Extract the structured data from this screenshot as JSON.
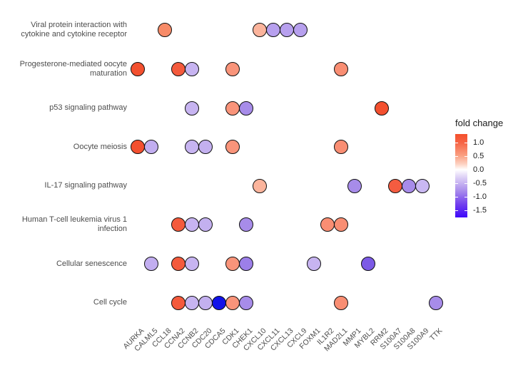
{
  "figure": {
    "background": "#ffffff"
  },
  "chart_data": {
    "type": "scatter",
    "title": "",
    "xlabel": "",
    "ylabel": "",
    "grid": false,
    "x_categories": [
      "AURKA",
      "CALML5",
      "CCL18",
      "CCNA2",
      "CCNB2",
      "CDC20",
      "CDCA5",
      "CDK1",
      "CHEK1",
      "CXCL10",
      "CXCL11",
      "CXCL13",
      "CXCL9",
      "FOXM1",
      "IL1R2",
      "MAD2L1",
      "MMP1",
      "MYBL2",
      "RRM2",
      "S100A7",
      "S100A8",
      "S100A9",
      "TTK"
    ],
    "y_categories": [
      "Viral protein interaction with cytokine and cytokine receptor",
      "Progesterone-mediated oocyte maturation",
      "p53 signaling pathway",
      "Oocyte meiosis",
      "IL-17 signaling pathway",
      "Human T-cell leukemia virus 1 infection",
      "Cellular senescence",
      "Cell cycle"
    ],
    "legend": {
      "title": "fold change",
      "position": "right",
      "tick_labels": [
        "1.0",
        "0.5",
        "0.0",
        "-0.5",
        "-1.0",
        "-1.5"
      ],
      "tick_values": [
        1.0,
        0.5,
        0.0,
        -0.5,
        -1.0,
        -1.5
      ],
      "bar_top_value": 1.3,
      "bar_bottom_value": -1.75,
      "gradient_stops": [
        {
          "pos": 0.0,
          "color": "#f4502c"
        },
        {
          "pos": 0.1,
          "color": "#f66344"
        },
        {
          "pos": 0.26,
          "color": "#faa183"
        },
        {
          "pos": 0.36,
          "color": "#fdd2c2"
        },
        {
          "pos": 0.426,
          "color": "#ffffff"
        },
        {
          "pos": 0.52,
          "color": "#ddd0f6"
        },
        {
          "pos": 0.68,
          "color": "#a98dec"
        },
        {
          "pos": 0.85,
          "color": "#6f3cee"
        },
        {
          "pos": 1.0,
          "color": "#3d07fa"
        }
      ]
    },
    "points": [
      {
        "pathway": "Viral protein interaction with cytokine and cytokine receptor",
        "gene": "CCL18",
        "fold_change": 0.8,
        "color": "#f78b68"
      },
      {
        "pathway": "Viral protein interaction with cytokine and cytokine receptor",
        "gene": "CXCL10",
        "fold_change": 0.45,
        "color": "#fbb49c"
      },
      {
        "pathway": "Viral protein interaction with cytokine and cytokine receptor",
        "gene": "CXCL11",
        "fold_change": -0.7,
        "color": "#b7a0ee"
      },
      {
        "pathway": "Viral protein interaction with cytokine and cytokine receptor",
        "gene": "CXCL13",
        "fold_change": -0.7,
        "color": "#b7a0ee"
      },
      {
        "pathway": "Viral protein interaction with cytokine and cytokine receptor",
        "gene": "CXCL9",
        "fold_change": -0.7,
        "color": "#b7a0ee"
      },
      {
        "pathway": "Progesterone-mediated oocyte maturation",
        "gene": "AURKA",
        "fold_change": 1.2,
        "color": "#f3502f"
      },
      {
        "pathway": "Progesterone-mediated oocyte maturation",
        "gene": "CCNA2",
        "fold_change": 1.1,
        "color": "#f45a3c"
      },
      {
        "pathway": "Progesterone-mediated oocyte maturation",
        "gene": "CCNB2",
        "fold_change": -0.5,
        "color": "#c7b4f1"
      },
      {
        "pathway": "Progesterone-mediated oocyte maturation",
        "gene": "CDK1",
        "fold_change": 0.75,
        "color": "#f9947a"
      },
      {
        "pathway": "Progesterone-mediated oocyte maturation",
        "gene": "MAD2L1",
        "fold_change": 0.8,
        "color": "#f98e73"
      },
      {
        "pathway": "p53 signaling pathway",
        "gene": "CCNB2",
        "fold_change": -0.5,
        "color": "#c7b4f1"
      },
      {
        "pathway": "p53 signaling pathway",
        "gene": "CDK1",
        "fold_change": 0.75,
        "color": "#f9947a"
      },
      {
        "pathway": "p53 signaling pathway",
        "gene": "CHEK1",
        "fold_change": -0.8,
        "color": "#a78ce9"
      },
      {
        "pathway": "p53 signaling pathway",
        "gene": "RRM2",
        "fold_change": 1.2,
        "color": "#f3502f"
      },
      {
        "pathway": "Oocyte meiosis",
        "gene": "AURKA",
        "fold_change": 1.2,
        "color": "#f3502f"
      },
      {
        "pathway": "Oocyte meiosis",
        "gene": "CALML5",
        "fold_change": -0.55,
        "color": "#c2aef0"
      },
      {
        "pathway": "Oocyte meiosis",
        "gene": "CCNB2",
        "fold_change": -0.5,
        "color": "#c7b4f1"
      },
      {
        "pathway": "Oocyte meiosis",
        "gene": "CDC20",
        "fold_change": -0.55,
        "color": "#c3b0ef"
      },
      {
        "pathway": "Oocyte meiosis",
        "gene": "CDK1",
        "fold_change": 0.75,
        "color": "#f9947a"
      },
      {
        "pathway": "Oocyte meiosis",
        "gene": "MAD2L1",
        "fold_change": 0.8,
        "color": "#f98e73"
      },
      {
        "pathway": "IL-17 signaling pathway",
        "gene": "CXCL10",
        "fold_change": 0.45,
        "color": "#fbb49c"
      },
      {
        "pathway": "IL-17 signaling pathway",
        "gene": "MMP1",
        "fold_change": -0.8,
        "color": "#a78ce9"
      },
      {
        "pathway": "IL-17 signaling pathway",
        "gene": "S100A7",
        "fold_change": 1.1,
        "color": "#f45c40"
      },
      {
        "pathway": "IL-17 signaling pathway",
        "gene": "S100A8",
        "fold_change": -0.8,
        "color": "#a78ce9"
      },
      {
        "pathway": "IL-17 signaling pathway",
        "gene": "S100A9",
        "fold_change": -0.5,
        "color": "#c9b8f2"
      },
      {
        "pathway": "Human T-cell leukemia virus 1 infection",
        "gene": "CCNA2",
        "fold_change": 1.1,
        "color": "#f45a3c"
      },
      {
        "pathway": "Human T-cell leukemia virus 1 infection",
        "gene": "CCNB2",
        "fold_change": -0.5,
        "color": "#c7b4f1"
      },
      {
        "pathway": "Human T-cell leukemia virus 1 infection",
        "gene": "CDC20",
        "fold_change": -0.55,
        "color": "#c3b0ef"
      },
      {
        "pathway": "Human T-cell leukemia virus 1 infection",
        "gene": "CHEK1",
        "fold_change": -0.8,
        "color": "#a78ce9"
      },
      {
        "pathway": "Human T-cell leukemia virus 1 infection",
        "gene": "IL1R2",
        "fold_change": 0.8,
        "color": "#f98e73"
      },
      {
        "pathway": "Human T-cell leukemia virus 1 infection",
        "gene": "MAD2L1",
        "fold_change": 0.8,
        "color": "#f98e73"
      },
      {
        "pathway": "Cellular senescence",
        "gene": "CALML5",
        "fold_change": -0.55,
        "color": "#c2aef0"
      },
      {
        "pathway": "Cellular senescence",
        "gene": "CCNA2",
        "fold_change": 1.1,
        "color": "#f45a3c"
      },
      {
        "pathway": "Cellular senescence",
        "gene": "CCNB2",
        "fold_change": -0.5,
        "color": "#c7b4f1"
      },
      {
        "pathway": "Cellular senescence",
        "gene": "CDK1",
        "fold_change": 0.75,
        "color": "#f9947a"
      },
      {
        "pathway": "Cellular senescence",
        "gene": "CHEK1",
        "fold_change": -0.85,
        "color": "#9c7fe8"
      },
      {
        "pathway": "Cellular senescence",
        "gene": "FOXM1",
        "fold_change": -0.5,
        "color": "#c7b4f1"
      },
      {
        "pathway": "Cellular senescence",
        "gene": "MYBL2",
        "fold_change": -1.1,
        "color": "#7c5ae6"
      },
      {
        "pathway": "Cell cycle",
        "gene": "CCNA2",
        "fold_change": 1.1,
        "color": "#f45a3c"
      },
      {
        "pathway": "Cell cycle",
        "gene": "CCNB2",
        "fold_change": -0.5,
        "color": "#c7b4f1"
      },
      {
        "pathway": "Cell cycle",
        "gene": "CDC20",
        "fold_change": -0.55,
        "color": "#c3b0ef"
      },
      {
        "pathway": "Cell cycle",
        "gene": "CDCA5",
        "fold_change": -1.6,
        "color": "#1112e9"
      },
      {
        "pathway": "Cell cycle",
        "gene": "CDK1",
        "fold_change": 0.75,
        "color": "#f9947a"
      },
      {
        "pathway": "Cell cycle",
        "gene": "CHEK1",
        "fold_change": -0.8,
        "color": "#a78ce9"
      },
      {
        "pathway": "Cell cycle",
        "gene": "MAD2L1",
        "fold_change": 0.8,
        "color": "#f98e73"
      },
      {
        "pathway": "Cell cycle",
        "gene": "TTK",
        "fold_change": -0.8,
        "color": "#a78ce9"
      }
    ]
  }
}
